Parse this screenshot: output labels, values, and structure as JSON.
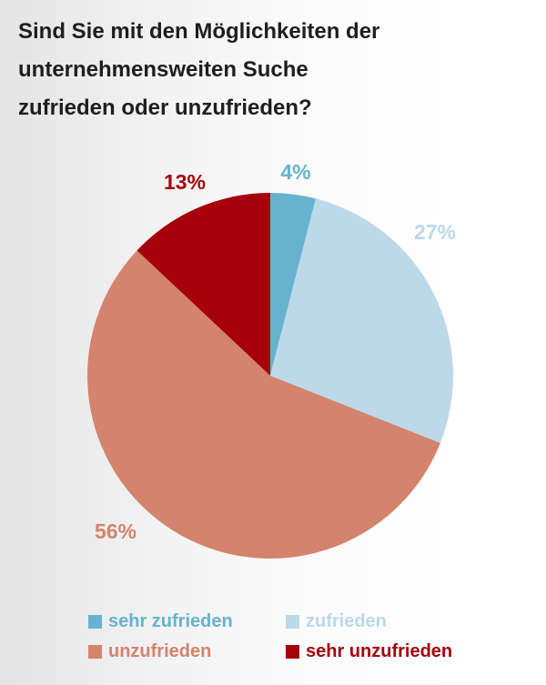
{
  "chart_data": {
    "type": "pie",
    "title_lines": [
      "Sind Sie mit den Möglichkeiten der",
      "unternehmensweiten Suche",
      "zufrieden oder unzufrieden?"
    ],
    "slices": [
      {
        "name": "sehr zufrieden",
        "value": 4,
        "label": "4%",
        "color": "#67b3ce"
      },
      {
        "name": "zufrieden",
        "value": 27,
        "label": "27%",
        "color": "#bcd9ea"
      },
      {
        "name": "unzufrieden",
        "value": 56,
        "label": "56%",
        "color": "#d4836c"
      },
      {
        "name": "sehr unzufrieden",
        "value": 13,
        "label": "13%",
        "color": "#a5000c"
      }
    ],
    "start": "12 o'clock",
    "direction": "clockwise",
    "legend_position": "bottom"
  }
}
